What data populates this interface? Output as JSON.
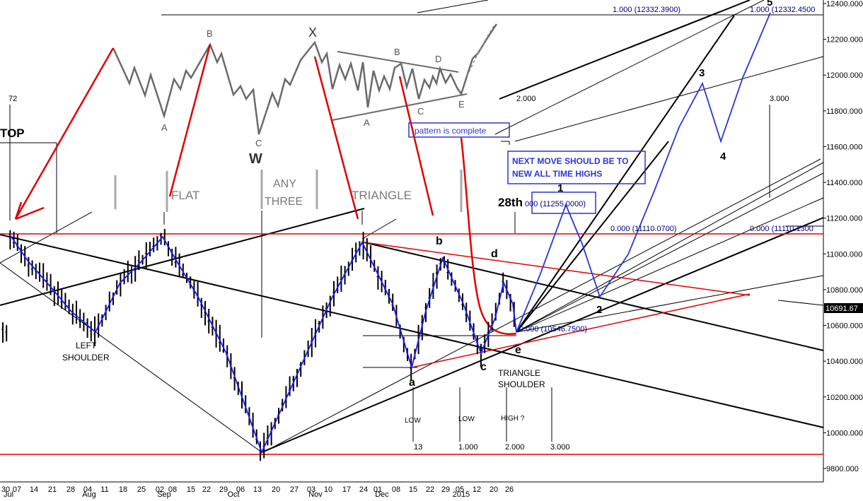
{
  "chart_data": {
    "type": "ohlc",
    "instrument_last": "10691.67",
    "y_axis": {
      "ticks": [
        "12400.000",
        "12200.000",
        "12000.000",
        "11800.000",
        "11600.000",
        "11400.000",
        "11200.000",
        "11000.000",
        "10800.000",
        "10600.000",
        "10400.000",
        "10200.000",
        "10000.000",
        "9800.000"
      ],
      "last_value_label": "10691.67"
    },
    "x_axis": {
      "ticks": [
        "30",
        "07",
        "14",
        "21",
        "28",
        "04",
        "11",
        "18",
        "25",
        "02",
        "08",
        "15",
        "22",
        "29",
        "06",
        "13",
        "20",
        "27",
        "03",
        "10",
        "17",
        "24",
        "01",
        "08",
        "15",
        "22",
        "29",
        "05",
        "12",
        "20",
        "26"
      ],
      "months": [
        "Jul",
        "Aug",
        "Sep",
        "Oct",
        "Nov",
        "Dec",
        "2015"
      ]
    },
    "fib_labels": {
      "top_1000_a": "1.000 (12332.3900)",
      "top_1000_b": "1.000 (12332.4500",
      "ext_2000": "2.000",
      "ext_3000": "3.000",
      "ret_0000_a": "0.000 (11110.0700)",
      "ret_0000_b": "0.000 (11110.1300",
      "box_11255": "000 (11255.0000)",
      "ret_10546": "0.000 (10546.7500)",
      "num_72": "72"
    },
    "time_labels": {
      "t13": "13",
      "t1": "1.000",
      "t2": "2.000",
      "t3": "3.000",
      "low1": "LOW",
      "low2": "LOW",
      "high": "HIGH ?",
      "d28": "28th"
    },
    "wave_labels": {
      "top": "TOP",
      "a": "a",
      "b": "b",
      "c": "c",
      "d": "d",
      "e": "e",
      "w1": "1",
      "w2": "2",
      "w3": "3",
      "w4": "4",
      "w5": "5"
    },
    "annotations": {
      "left_shoulder_1": "LEFT",
      "left_shoulder_2": "SHOULDER",
      "tri_shoulder_1": "TRIANGLE",
      "tri_shoulder_2": "SHOULDER",
      "pattern_complete": "pattern is complete",
      "next_move_1": "NEXT MOVE SHOULD BE TO",
      "next_move_2": "NEW ALL TIME HIGHS"
    },
    "inset": {
      "flat": "FLAT",
      "any": "ANY",
      "three": "THREE",
      "triangle": "TRIANGLE",
      "A1": "A",
      "B1": "B",
      "C1": "C",
      "W": "W",
      "X": "X",
      "A2": "A",
      "B2": "B",
      "C2": "C",
      "D": "D",
      "E": "E"
    },
    "colors": {
      "price_bars": "#000000",
      "wave_path": "#1a1aff",
      "projection": "#2a37d6",
      "horizontal_levels": "#e00000",
      "annotation_arrows": "#e00000",
      "trendlines": "#000000"
    }
  }
}
